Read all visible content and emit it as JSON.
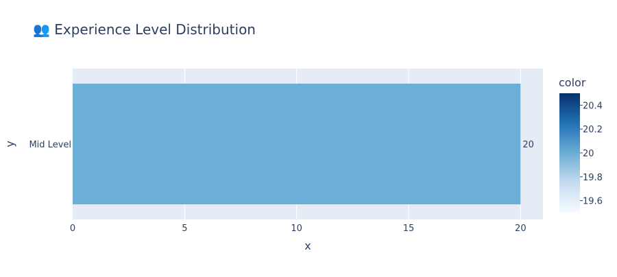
{
  "chart_data": {
    "type": "bar",
    "orientation": "horizontal",
    "title": "👥 Experience Level Distribution",
    "title_icon": "people-icon",
    "xlabel": "x",
    "ylabel": "y",
    "categories": [
      "Mid Level"
    ],
    "values": [
      20
    ],
    "data_labels": [
      "20"
    ],
    "xlim": [
      0,
      21
    ],
    "xticks": [
      0,
      5,
      10,
      15,
      20
    ],
    "grid": true,
    "colorbar": {
      "title": "color",
      "range": [
        19.5,
        20.5
      ],
      "ticks": [
        "19.6",
        "19.8",
        "20",
        "20.2",
        "20.4"
      ],
      "tick_values": [
        19.6,
        19.8,
        20,
        20.2,
        20.4
      ],
      "colors": [
        "#f7fbff",
        "#c6dbef",
        "#6baed6",
        "#2171b5",
        "#08306b"
      ]
    },
    "bar_color": "#6baed6",
    "plot_background": "#e5ecf6"
  }
}
